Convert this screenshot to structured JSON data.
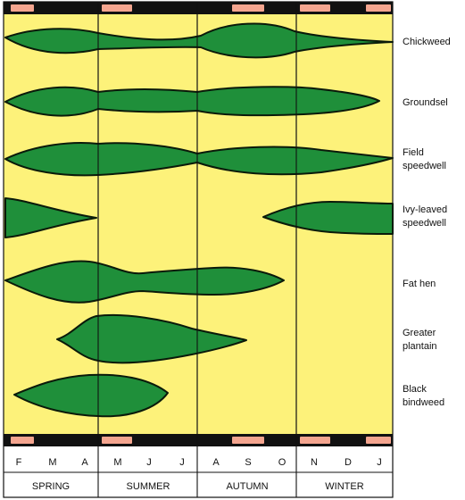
{
  "colors": {
    "background": "#fdf27a",
    "leaf_fill": "#1f8f3a",
    "leaf_stroke": "#0a1a0a",
    "band_black": "#111111",
    "band_pink": "#f4a58f",
    "grid": "#111111"
  },
  "weeds": [
    {
      "name": "Chickweed"
    },
    {
      "name": "Groundsel"
    },
    {
      "name": "Field\nspeedwell"
    },
    {
      "name": "Ivy-leaved\nspeedwell"
    },
    {
      "name": "Fat hen"
    },
    {
      "name": "Greater\nplantain"
    },
    {
      "name": "Black\nbindweed"
    }
  ],
  "months": [
    "F",
    "M",
    "A",
    "M",
    "J",
    "J",
    "A",
    "S",
    "O",
    "N",
    "D",
    "J"
  ],
  "seasons": [
    "SPRING",
    "SUMMER",
    "AUTUMN",
    "WINTER"
  ]
}
